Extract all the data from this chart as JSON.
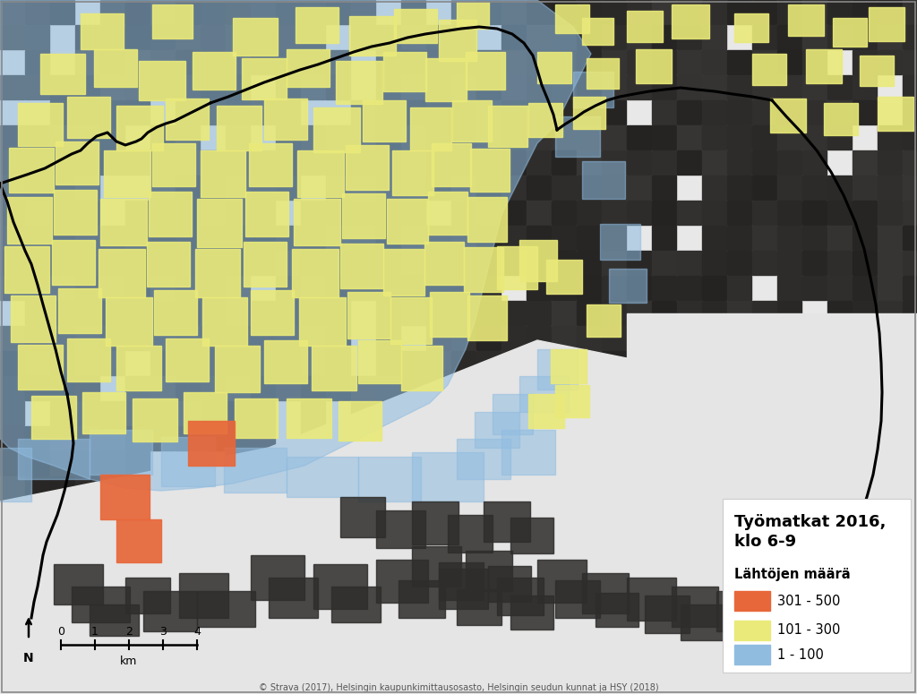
{
  "title_line1": "Työmatkat 2016,",
  "title_line2": "klo 6-9",
  "legend_subtitle": "Lähtöjen määrä",
  "legend_items": [
    {
      "label": "301 - 500",
      "color": "#E8673A"
    },
    {
      "label": "101 - 300",
      "color": "#EAEA7A"
    },
    {
      "label": "1 - 100",
      "color": "#90BCE0"
    }
  ],
  "scale_label": "km",
  "scale_ticks": [
    "0",
    "1",
    "2",
    "3",
    "4"
  ],
  "copyright": "© Strava (2017), Helsingin kaupunkimittausosasto, Helsingin seudun kunnat ja HSY (2018)",
  "bg_overall": "#E8E8E8",
  "tile_dark": "#2E2E2E",
  "tile_dark2": "#3A3A3A",
  "tile_road": "#4A4A4A",
  "blue_color": "#90BCE0",
  "blue_alpha": 0.55,
  "yellow_color": "#EAEA7A",
  "orange_color": "#E8673A",
  "boundary_color": "#000000",
  "legend_bg": "#FFFFFF",
  "sea_color": "#E5E5E5"
}
